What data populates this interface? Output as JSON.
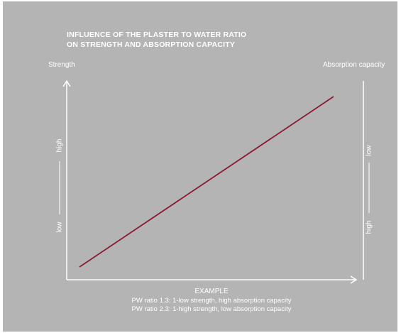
{
  "chart_data": {
    "type": "line",
    "title": [
      "INFLUENCE OF THE PLASTER TO WATER RATIO",
      "ON STRENGTH AND ABSORPTION CAPACITY"
    ],
    "left_axis": {
      "label": "Strength",
      "low": "low",
      "high": "high"
    },
    "right_axis": {
      "label": "Absorption capacity",
      "top": "low",
      "bottom": "high"
    },
    "series": [
      {
        "color": "#8c1a2e",
        "x": [
          0,
          1
        ],
        "y": [
          0,
          1
        ]
      }
    ],
    "annotations": {
      "heading": "EXAMPLE",
      "lines": [
        "PW ratio 1.3: 1-low strength, high absorption capacity",
        "PW ratio 2.3: 1-high strength, low absorption capacity"
      ]
    },
    "colors": {
      "background": "#b4b4b4",
      "axis": "#ffffff",
      "line": "#8c1a2e"
    }
  }
}
